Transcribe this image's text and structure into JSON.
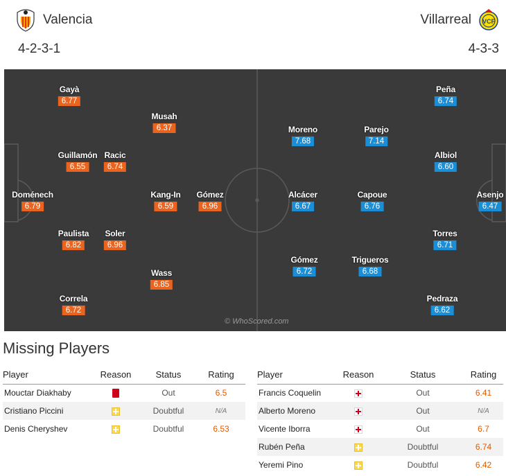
{
  "home": {
    "name": "Valencia",
    "formation": "4-2-3-1",
    "rating_color": "#e9641f"
  },
  "away": {
    "name": "Villarreal",
    "formation": "4-3-3",
    "rating_color": "#1a8fd8"
  },
  "pitch": {
    "watermark": "© WhoScored.com",
    "home_players": [
      {
        "name": "Gayà",
        "rating": "6.77"
      },
      {
        "name": "Musah",
        "rating": "6.37"
      },
      {
        "name": "Guillamón",
        "rating": "6.55"
      },
      {
        "name": "Racic",
        "rating": "6.74"
      },
      {
        "name": "Doménech",
        "rating": "6.79"
      },
      {
        "name": "Kang-In",
        "rating": "6.59"
      },
      {
        "name": "Gómez",
        "rating": "6.96"
      },
      {
        "name": "Paulista",
        "rating": "6.82"
      },
      {
        "name": "Soler",
        "rating": "6.96"
      },
      {
        "name": "Wass",
        "rating": "6.85"
      },
      {
        "name": "Correla",
        "rating": "6.72"
      }
    ],
    "away_players": [
      {
        "name": "Peña",
        "rating": "6.74"
      },
      {
        "name": "Moreno",
        "rating": "7.68"
      },
      {
        "name": "Parejo",
        "rating": "7.14"
      },
      {
        "name": "Albiol",
        "rating": "6.60"
      },
      {
        "name": "Alcácer",
        "rating": "6.67"
      },
      {
        "name": "Capoue",
        "rating": "6.76"
      },
      {
        "name": "Asenjo",
        "rating": "6.47"
      },
      {
        "name": "Torres",
        "rating": "6.71"
      },
      {
        "name": "Gómez",
        "rating": "6.72"
      },
      {
        "name": "Trigueros",
        "rating": "6.68"
      },
      {
        "name": "Pedraza",
        "rating": "6.62"
      }
    ]
  },
  "missing": {
    "title": "Missing Players",
    "headers": {
      "player": "Player",
      "reason": "Reason",
      "status": "Status",
      "rating": "Rating"
    },
    "home_rows": [
      {
        "player": "Mouctar Diakhaby",
        "reason_icon": "red-card-icon",
        "status": "Out",
        "rating": "6.5"
      },
      {
        "player": "Cristiano Piccini",
        "reason_icon": "doubtful-icon",
        "status": "Doubtful",
        "rating": "N/A"
      },
      {
        "player": "Denis Cheryshev",
        "reason_icon": "doubtful-icon",
        "status": "Doubtful",
        "rating": "6.53"
      }
    ],
    "away_rows": [
      {
        "player": "Francis Coquelin",
        "reason_icon": "injury-icon",
        "status": "Out",
        "rating": "6.41"
      },
      {
        "player": "Alberto Moreno",
        "reason_icon": "injury-icon",
        "status": "Out",
        "rating": "N/A"
      },
      {
        "player": "Vicente Iborra",
        "reason_icon": "injury-icon",
        "status": "Out",
        "rating": "6.7"
      },
      {
        "player": "Rubén Peña",
        "reason_icon": "doubtful-icon",
        "status": "Doubtful",
        "rating": "6.74"
      },
      {
        "player": "Yeremi Pino",
        "reason_icon": "doubtful-icon",
        "status": "Doubtful",
        "rating": "6.42"
      }
    ]
  }
}
